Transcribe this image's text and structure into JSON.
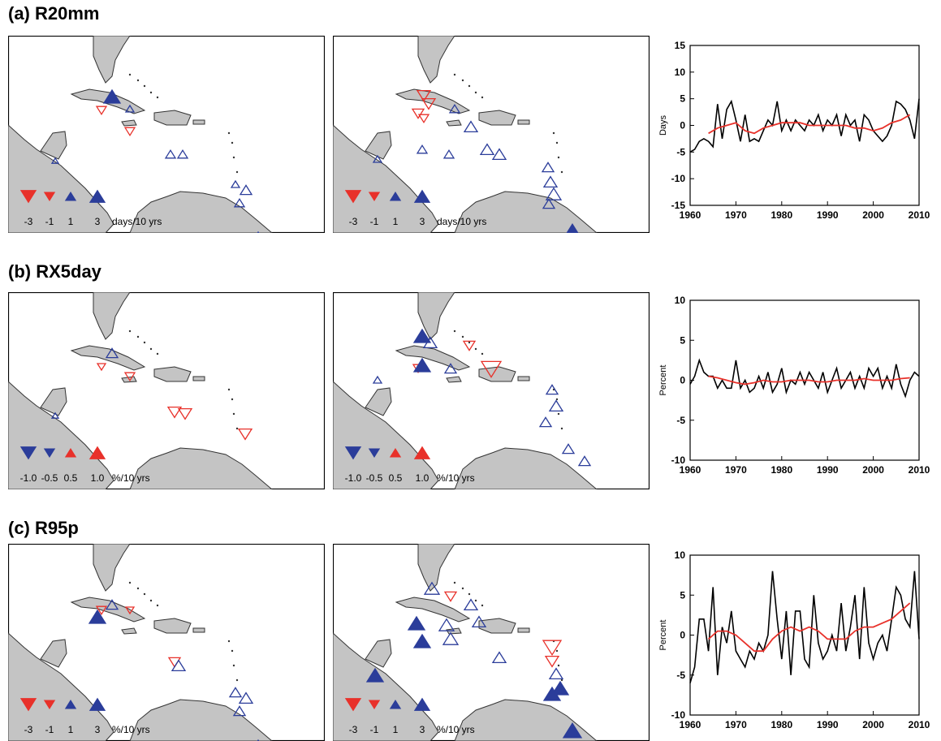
{
  "panels": [
    {
      "label": "(a) R20mm",
      "legend_values": [
        "-3",
        "-1",
        "1",
        "3"
      ],
      "legend_unit": "days/10 yrs",
      "legend_colors": [
        "#e8312a",
        "#e8312a",
        "#2b3d9a",
        "#2b3d9a"
      ]
    },
    {
      "label": "(b) RX5day",
      "legend_values": [
        "-1.0",
        "-0.5",
        "0.5",
        "1.0"
      ],
      "legend_unit": "%/10 yrs",
      "legend_colors": [
        "#2b3d9a",
        "#2b3d9a",
        "#e8312a",
        "#e8312a"
      ]
    },
    {
      "label": "(c) R95p",
      "legend_values": [
        "-3",
        "-1",
        "1",
        "3"
      ],
      "legend_unit": "%/10 yrs",
      "legend_colors": [
        "#e8312a",
        "#e8312a",
        "#2b3d9a",
        "#2b3d9a"
      ]
    }
  ],
  "colors": {
    "trend_increase": "#2b3d9a",
    "trend_decrease": "#e8312a",
    "land": "#c4c4c4",
    "annual_series": "#000000",
    "smoothed_series": "#e8312a"
  },
  "chart_data": [
    {
      "type": "line",
      "ylabel": "Days",
      "xlim": [
        1960,
        2010
      ],
      "ylim": [
        -15,
        15
      ],
      "xticks": [
        1960,
        1970,
        1980,
        1990,
        2000,
        2010
      ],
      "yticks": [
        -15,
        -10,
        -5,
        0,
        5,
        10,
        15
      ],
      "series": [
        {
          "x": [
            1960,
            1961,
            1962,
            1963,
            1964,
            1965,
            1966,
            1967,
            1968,
            1969,
            1970,
            1971,
            1972,
            1973,
            1974,
            1975,
            1976,
            1977,
            1978,
            1979,
            1980,
            1981,
            1982,
            1983,
            1984,
            1985,
            1986,
            1987,
            1988,
            1989,
            1990,
            1991,
            1992,
            1993,
            1994,
            1995,
            1996,
            1997,
            1998,
            1999,
            2000,
            2001,
            2002,
            2003,
            2004,
            2005,
            2006,
            2007,
            2008,
            2009,
            2010
          ],
          "y": [
            -5,
            -4.5,
            -3,
            -2.5,
            -3,
            -4,
            4,
            -2.5,
            3,
            4.5,
            1,
            -3,
            2,
            -3,
            -2.5,
            -3,
            -1,
            1,
            0,
            4.5,
            -1,
            1,
            -1,
            1,
            0,
            -1,
            1,
            0,
            2,
            -1,
            1,
            0,
            2,
            -2,
            2,
            0,
            1,
            -3,
            2,
            1,
            -1,
            -2,
            -3,
            -2,
            0,
            4.5,
            4,
            3,
            1,
            -2.5,
            5
          ]
        },
        {
          "x": [
            1964,
            1966,
            1968,
            1970,
            1972,
            1974,
            1976,
            1978,
            1980,
            1982,
            1984,
            1986,
            1988,
            1990,
            1992,
            1994,
            1996,
            1998,
            2000,
            2002,
            2004,
            2006,
            2008
          ],
          "y": [
            -1.5,
            -0.5,
            0,
            0.5,
            -1,
            -1.5,
            -0.5,
            0,
            0.5,
            0.5,
            0.5,
            0,
            0,
            0,
            0,
            0,
            -0.5,
            -0.5,
            -1,
            -0.5,
            0.5,
            1,
            2
          ]
        }
      ]
    },
    {
      "type": "line",
      "ylabel": "Percent",
      "xlim": [
        1960,
        2010
      ],
      "ylim": [
        -10,
        10
      ],
      "xticks": [
        1960,
        1970,
        1980,
        1990,
        2000,
        2010
      ],
      "yticks": [
        -10,
        -5,
        0,
        5,
        10
      ],
      "series": [
        {
          "x": [
            1960,
            1961,
            1962,
            1963,
            1964,
            1965,
            1966,
            1967,
            1968,
            1969,
            1970,
            1971,
            1972,
            1973,
            1974,
            1975,
            1976,
            1977,
            1978,
            1979,
            1980,
            1981,
            1982,
            1983,
            1984,
            1985,
            1986,
            1987,
            1988,
            1989,
            1990,
            1991,
            1992,
            1993,
            1994,
            1995,
            1996,
            1997,
            1998,
            1999,
            2000,
            2001,
            2002,
            2003,
            2004,
            2005,
            2006,
            2007,
            2008,
            2009,
            2010
          ],
          "y": [
            -0.5,
            0.5,
            2.5,
            1,
            0.5,
            0.5,
            -1,
            0,
            -1,
            -1,
            2.5,
            -1,
            0,
            -1.5,
            -1,
            0.5,
            -1,
            1,
            -1.5,
            -0.5,
            1.5,
            -1.5,
            0,
            -0.5,
            1,
            -0.5,
            1,
            0,
            -1,
            1,
            -1.5,
            0,
            1.5,
            -1,
            0,
            1,
            -1,
            0.5,
            -1,
            1.5,
            0.5,
            1.5,
            -1,
            0.5,
            -1,
            2,
            -0.5,
            -2,
            0,
            1,
            0.5
          ]
        },
        {
          "x": [
            1964,
            1966,
            1968,
            1970,
            1972,
            1974,
            1976,
            1978,
            1980,
            1982,
            1984,
            1986,
            1988,
            1990,
            1992,
            1994,
            1996,
            1998,
            2000,
            2002,
            2004,
            2006,
            2008
          ],
          "y": [
            0.5,
            0.3,
            0,
            -0.3,
            -0.5,
            -0.3,
            0,
            -0.2,
            -0.2,
            0,
            0,
            0,
            -0.2,
            -0.2,
            0,
            0,
            0,
            0.2,
            0,
            0,
            0,
            0.2,
            0.3
          ]
        }
      ]
    },
    {
      "type": "line",
      "ylabel": "Percent",
      "xlim": [
        1960,
        2010
      ],
      "ylim": [
        -10,
        10
      ],
      "xticks": [
        1960,
        1970,
        1980,
        1990,
        2000,
        2010
      ],
      "yticks": [
        -10,
        -5,
        0,
        5,
        10
      ],
      "series": [
        {
          "x": [
            1960,
            1961,
            1962,
            1963,
            1964,
            1965,
            1966,
            1967,
            1968,
            1969,
            1970,
            1971,
            1972,
            1973,
            1974,
            1975,
            1976,
            1977,
            1978,
            1979,
            1980,
            1981,
            1982,
            1983,
            1984,
            1985,
            1986,
            1987,
            1988,
            1989,
            1990,
            1991,
            1992,
            1993,
            1994,
            1995,
            1996,
            1997,
            1998,
            1999,
            2000,
            2001,
            2002,
            2003,
            2004,
            2005,
            2006,
            2007,
            2008,
            2009,
            2010
          ],
          "y": [
            -6,
            -4,
            2,
            2,
            -2,
            6,
            -5,
            1,
            -1,
            3,
            -2,
            -3,
            -4,
            -2,
            -3,
            -1,
            -2,
            0,
            8,
            2,
            -3,
            3,
            -5,
            3,
            3,
            -3,
            -4,
            5,
            -1,
            -3,
            -2,
            0,
            -2,
            4,
            -2,
            1,
            5,
            -3,
            6,
            -1,
            -3,
            -1,
            0,
            -2,
            2,
            6,
            5,
            2,
            1,
            8,
            -0.5
          ]
        },
        {
          "x": [
            1964,
            1966,
            1968,
            1970,
            1972,
            1974,
            1976,
            1978,
            1980,
            1982,
            1984,
            1986,
            1988,
            1990,
            1992,
            1994,
            1996,
            1998,
            2000,
            2002,
            2004,
            2006,
            2008
          ],
          "y": [
            -0.5,
            0.5,
            0.5,
            0,
            -1,
            -2,
            -2,
            -0.5,
            0.5,
            1,
            0.5,
            1,
            0.5,
            -0.5,
            -0.5,
            -0.5,
            0.5,
            1,
            1,
            1.5,
            2,
            3,
            4
          ]
        }
      ]
    }
  ]
}
